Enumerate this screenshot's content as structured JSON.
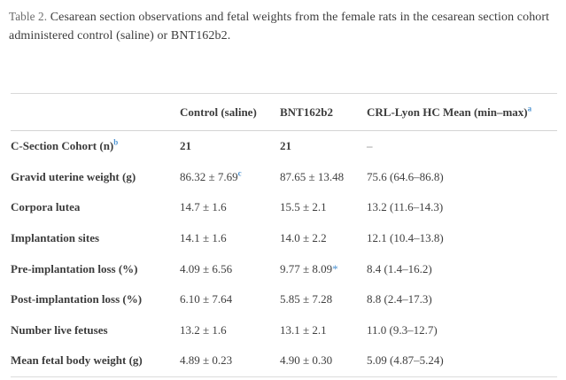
{
  "caption": {
    "label": "Table 2.",
    "text": " Cesarean section observations and fetal weights from the female rats in the cesarean section cohort administered control (saline) or BNT162b2."
  },
  "table": {
    "header": {
      "col0": "",
      "col1": {
        "text": "Control (saline)"
      },
      "col2": {
        "text": "BNT162b2"
      },
      "col3": {
        "text": "CRL-Lyon HC Mean (min–max)",
        "sup": "a"
      }
    },
    "rows": [
      {
        "label": "C-Section Cohort (n)",
        "label_sup": "b",
        "cells": [
          {
            "text": "21"
          },
          {
            "text": "21"
          },
          {
            "text": "–"
          }
        ]
      },
      {
        "label": "Gravid uterine weight (g)",
        "cells": [
          {
            "text": "86.32 ± 7.69",
            "sup": "c"
          },
          {
            "text": "87.65 ± 13.48"
          },
          {
            "text": "75.6 (64.6–86.8)"
          }
        ]
      },
      {
        "label": "Corpora lutea",
        "cells": [
          {
            "text": "14.7 ± 1.6"
          },
          {
            "text": "15.5 ± 2.1"
          },
          {
            "text": "13.2 (11.6–14.3)"
          }
        ]
      },
      {
        "label": "Implantation sites",
        "cells": [
          {
            "text": "14.1 ± 1.6"
          },
          {
            "text": "14.0 ± 2.2"
          },
          {
            "text": "12.1 (10.4–13.8)"
          }
        ]
      },
      {
        "label": "Pre-implantation loss (%)",
        "cells": [
          {
            "text": "4.09 ± 6.56"
          },
          {
            "text": "9.77 ± 8.09",
            "star": "*"
          },
          {
            "text": "8.4 (1.4–16.2)"
          }
        ]
      },
      {
        "label": "Post-implantation loss (%)",
        "cells": [
          {
            "text": "6.10 ± 7.64"
          },
          {
            "text": "5.85 ± 7.28"
          },
          {
            "text": "8.8 (2.4–17.3)"
          }
        ]
      },
      {
        "label": "Number live fetuses",
        "cells": [
          {
            "text": "13.2 ± 1.6"
          },
          {
            "text": "13.1 ± 2.1"
          },
          {
            "text": "11.0 (9.3–12.7)"
          }
        ]
      },
      {
        "label": "Mean fetal body weight (g)",
        "cells": [
          {
            "text": "4.89 ± 0.23"
          },
          {
            "text": "4.90 ± 0.30"
          },
          {
            "text": "5.09 (4.87–5.24)"
          }
        ]
      }
    ]
  },
  "colors": {
    "accent_blue": "#4f94d2",
    "body_text": "#3c3c3c",
    "caption_label_gray": "#6d6d6d",
    "rule_gray": "#d9d9d9",
    "dash_gray": "#9f9f9f"
  }
}
